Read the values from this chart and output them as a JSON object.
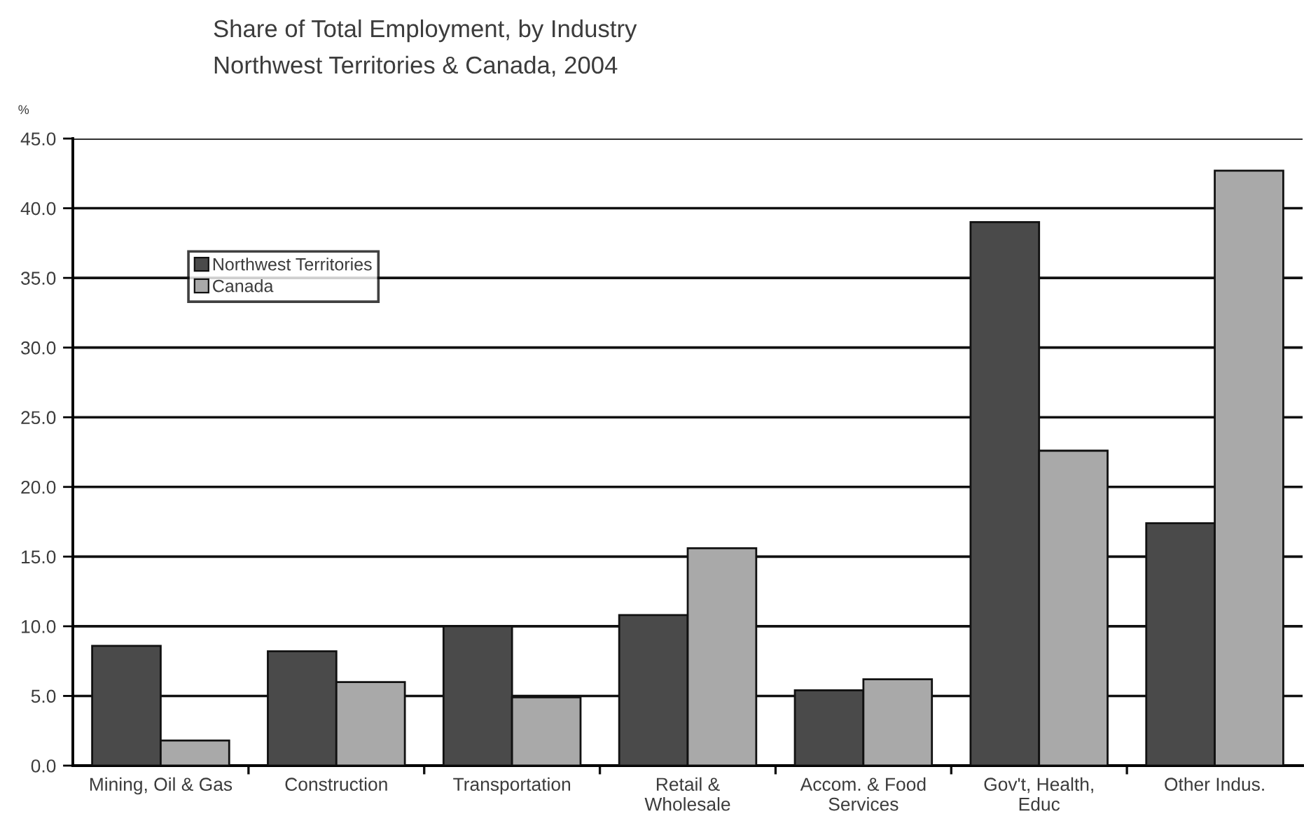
{
  "chart_data": {
    "type": "bar",
    "title": "Share of Total Employment, by Industry",
    "subtitle": "Northwest Territories & Canada, 2004",
    "ylabel": "%",
    "categories": [
      "Mining, Oil & Gas",
      "Construction",
      "Transportation",
      "Retail &\nWholesale",
      "Accom. & Food\nServices",
      "Gov't, Health,\nEduc",
      "Other Indus."
    ],
    "series": [
      {
        "name": "Northwest Territories",
        "color": "#4a4a4a",
        "values": [
          8.6,
          8.2,
          10.0,
          10.8,
          5.4,
          39.0,
          17.4
        ]
      },
      {
        "name": "Canada",
        "color": "#a9a9a9",
        "values": [
          1.8,
          6.0,
          4.9,
          15.6,
          6.2,
          22.6,
          42.7
        ]
      }
    ],
    "ylim": [
      0,
      45
    ],
    "yticks": [
      {
        "value": 0,
        "label": "0.0"
      },
      {
        "value": 5,
        "label": "5.0"
      },
      {
        "value": 10,
        "label": "10.0"
      },
      {
        "value": 15,
        "label": "15.0"
      },
      {
        "value": 20,
        "label": "20.0"
      },
      {
        "value": 25,
        "label": "25.0"
      },
      {
        "value": 30,
        "label": "30.0"
      },
      {
        "value": 35,
        "label": "35.0"
      },
      {
        "value": 40,
        "label": "40.0"
      },
      {
        "value": 45,
        "label": "45.0"
      }
    ],
    "grid": "y",
    "legend": "top left"
  }
}
